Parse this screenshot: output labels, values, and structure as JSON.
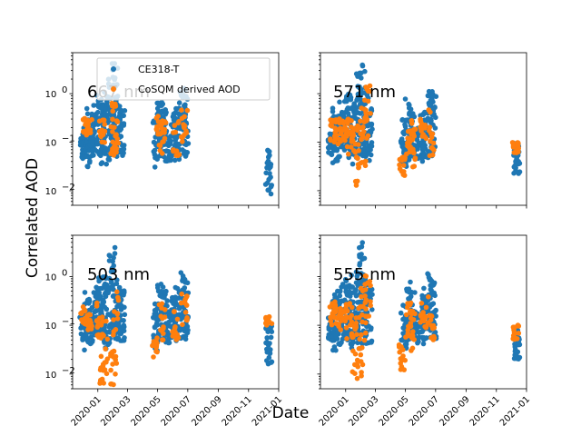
{
  "chart_data": {
    "type": "scatter",
    "xlabel": "Date",
    "ylabel": "Correlated AOD",
    "yscale": "log",
    "ylim": [
      0.005,
      7
    ],
    "xlim": [
      "2019-11-11",
      "2021-01-01"
    ],
    "x_ticks": [
      "2020-01",
      "2020-03",
      "2020-05",
      "2020-07",
      "2020-09",
      "2020-11",
      "2021-01"
    ],
    "y_ticks": [
      "10^-2",
      "10^-1",
      "10^0"
    ],
    "legend": {
      "position": "top-left of first panel",
      "entries": [
        "CE318-T",
        "CoSQM derived AOD"
      ]
    },
    "colors": {
      "CE318-T": "#1f77b4",
      "CoSQM derived AOD": "#ff7f0e"
    },
    "panels": [
      {
        "label": "667 nm",
        "series": [
          {
            "name": "CE318-T",
            "clusters": [
              {
                "date": "2019-12-02",
                "lo": 0.04,
                "hi": 0.15
              },
              {
                "date": "2019-12-10",
                "lo": 0.03,
                "hi": 0.5
              },
              {
                "date": "2019-12-18",
                "lo": 0.04,
                "hi": 0.35
              },
              {
                "date": "2019-12-26",
                "lo": 0.05,
                "hi": 0.7
              },
              {
                "date": "2020-01-05",
                "lo": 0.05,
                "hi": 1.0
              },
              {
                "date": "2020-01-12",
                "lo": 0.03,
                "hi": 1.2
              },
              {
                "date": "2020-01-20",
                "lo": 0.04,
                "hi": 0.9
              },
              {
                "date": "2020-01-28",
                "lo": 0.05,
                "hi": 3.0
              },
              {
                "date": "2020-02-04",
                "lo": 0.04,
                "hi": 5.0
              },
              {
                "date": "2020-02-10",
                "lo": 0.05,
                "hi": 1.0
              },
              {
                "date": "2020-02-18",
                "lo": 0.04,
                "hi": 0.6
              },
              {
                "date": "2020-04-28",
                "lo": 0.03,
                "hi": 0.3
              },
              {
                "date": "2020-05-06",
                "lo": 0.04,
                "hi": 0.8
              },
              {
                "date": "2020-05-14",
                "lo": 0.05,
                "hi": 0.5
              },
              {
                "date": "2020-05-22",
                "lo": 0.04,
                "hi": 0.2
              },
              {
                "date": "2020-06-04",
                "lo": 0.05,
                "hi": 0.4
              },
              {
                "date": "2020-06-10",
                "lo": 0.04,
                "hi": 0.6
              },
              {
                "date": "2020-06-20",
                "lo": 0.05,
                "hi": 1.3
              },
              {
                "date": "2020-06-26",
                "lo": 0.05,
                "hi": 1.0
              },
              {
                "date": "2020-12-12",
                "lo": 0.008,
                "hi": 0.08
              }
            ]
          },
          {
            "name": "CoSQM derived AOD",
            "clusters": [
              {
                "date": "2019-12-08",
                "lo": 0.15,
                "hi": 0.4
              },
              {
                "date": "2019-12-14",
                "lo": 0.12,
                "hi": 0.3
              },
              {
                "date": "2020-01-10",
                "lo": 0.08,
                "hi": 0.3
              },
              {
                "date": "2020-02-02",
                "lo": 0.05,
                "hi": 0.7
              },
              {
                "date": "2020-02-06",
                "lo": 0.06,
                "hi": 0.3
              },
              {
                "date": "2020-05-05",
                "lo": 0.05,
                "hi": 0.4
              },
              {
                "date": "2020-05-12",
                "lo": 0.08,
                "hi": 0.3
              },
              {
                "date": "2020-06-08",
                "lo": 0.05,
                "hi": 0.3
              },
              {
                "date": "2020-06-24",
                "lo": 0.1,
                "hi": 0.6
              }
            ]
          }
        ]
      },
      {
        "label": "571 nm",
        "series": [
          {
            "name": "CE318-T",
            "clusters": [
              {
                "date": "2019-12-02",
                "lo": 0.05,
                "hi": 0.15
              },
              {
                "date": "2019-12-10",
                "lo": 0.03,
                "hi": 0.5
              },
              {
                "date": "2019-12-18",
                "lo": 0.04,
                "hi": 0.35
              },
              {
                "date": "2019-12-26",
                "lo": 0.05,
                "hi": 0.7
              },
              {
                "date": "2020-01-05",
                "lo": 0.05,
                "hi": 1.0
              },
              {
                "date": "2020-01-12",
                "lo": 0.03,
                "hi": 1.2
              },
              {
                "date": "2020-01-20",
                "lo": 0.04,
                "hi": 0.9
              },
              {
                "date": "2020-01-28",
                "lo": 0.05,
                "hi": 3.0
              },
              {
                "date": "2020-02-04",
                "lo": 0.04,
                "hi": 5.0
              },
              {
                "date": "2020-02-10",
                "lo": 0.05,
                "hi": 1.0
              },
              {
                "date": "2020-02-18",
                "lo": 0.04,
                "hi": 0.6
              },
              {
                "date": "2020-04-28",
                "lo": 0.03,
                "hi": 0.3
              },
              {
                "date": "2020-05-06",
                "lo": 0.04,
                "hi": 0.8
              },
              {
                "date": "2020-05-14",
                "lo": 0.05,
                "hi": 0.5
              },
              {
                "date": "2020-05-22",
                "lo": 0.04,
                "hi": 0.2
              },
              {
                "date": "2020-06-04",
                "lo": 0.05,
                "hi": 0.4
              },
              {
                "date": "2020-06-10",
                "lo": 0.04,
                "hi": 0.6
              },
              {
                "date": "2020-06-20",
                "lo": 0.05,
                "hi": 1.3
              },
              {
                "date": "2020-06-26",
                "lo": 0.05,
                "hi": 1.0
              },
              {
                "date": "2020-12-12",
                "lo": 0.02,
                "hi": 0.1
              }
            ]
          },
          {
            "name": "CoSQM derived AOD",
            "clusters": [
              {
                "date": "2019-12-06",
                "lo": 0.1,
                "hi": 0.3
              },
              {
                "date": "2019-12-16",
                "lo": 0.08,
                "hi": 0.4
              },
              {
                "date": "2019-12-28",
                "lo": 0.1,
                "hi": 0.3
              },
              {
                "date": "2020-01-08",
                "lo": 0.05,
                "hi": 0.3
              },
              {
                "date": "2020-01-18",
                "lo": 0.012,
                "hi": 0.2
              },
              {
                "date": "2020-01-30",
                "lo": 0.01,
                "hi": 0.3
              },
              {
                "date": "2020-02-06",
                "lo": 0.03,
                "hi": 0.6
              },
              {
                "date": "2020-02-14",
                "lo": 0.1,
                "hi": 2.0
              },
              {
                "date": "2020-04-24",
                "lo": 0.02,
                "hi": 0.05
              },
              {
                "date": "2020-05-08",
                "lo": 0.05,
                "hi": 0.3
              },
              {
                "date": "2020-05-16",
                "lo": 0.03,
                "hi": 0.2
              },
              {
                "date": "2020-06-06",
                "lo": 0.08,
                "hi": 0.3
              },
              {
                "date": "2020-06-22",
                "lo": 0.05,
                "hi": 0.5
              },
              {
                "date": "2020-12-10",
                "lo": 0.06,
                "hi": 0.1
              }
            ]
          }
        ]
      },
      {
        "label": "503 nm",
        "series": [
          {
            "name": "CE318-T",
            "clusters": [
              {
                "date": "2019-12-02",
                "lo": 0.05,
                "hi": 0.15
              },
              {
                "date": "2019-12-10",
                "lo": 0.03,
                "hi": 0.5
              },
              {
                "date": "2019-12-18",
                "lo": 0.04,
                "hi": 0.35
              },
              {
                "date": "2019-12-26",
                "lo": 0.05,
                "hi": 0.7
              },
              {
                "date": "2020-01-05",
                "lo": 0.05,
                "hi": 1.0
              },
              {
                "date": "2020-01-12",
                "lo": 0.03,
                "hi": 1.2
              },
              {
                "date": "2020-01-20",
                "lo": 0.04,
                "hi": 0.9
              },
              {
                "date": "2020-01-28",
                "lo": 0.05,
                "hi": 3.0
              },
              {
                "date": "2020-02-04",
                "lo": 0.04,
                "hi": 5.0
              },
              {
                "date": "2020-02-10",
                "lo": 0.05,
                "hi": 1.0
              },
              {
                "date": "2020-02-18",
                "lo": 0.04,
                "hi": 0.6
              },
              {
                "date": "2020-04-28",
                "lo": 0.03,
                "hi": 0.3
              },
              {
                "date": "2020-05-06",
                "lo": 0.04,
                "hi": 0.8
              },
              {
                "date": "2020-05-14",
                "lo": 0.05,
                "hi": 0.5
              },
              {
                "date": "2020-05-22",
                "lo": 0.04,
                "hi": 0.2
              },
              {
                "date": "2020-06-04",
                "lo": 0.05,
                "hi": 0.4
              },
              {
                "date": "2020-06-10",
                "lo": 0.04,
                "hi": 0.6
              },
              {
                "date": "2020-06-20",
                "lo": 0.05,
                "hi": 1.3
              },
              {
                "date": "2020-06-26",
                "lo": 0.05,
                "hi": 1.0
              },
              {
                "date": "2020-12-12",
                "lo": 0.015,
                "hi": 0.1
              }
            ]
          },
          {
            "name": "CoSQM derived AOD",
            "clusters": [
              {
                "date": "2019-12-04",
                "lo": 0.1,
                "hi": 0.25
              },
              {
                "date": "2019-12-14",
                "lo": 0.08,
                "hi": 0.2
              },
              {
                "date": "2020-01-04",
                "lo": 0.05,
                "hi": 0.3
              },
              {
                "date": "2020-01-10",
                "lo": 0.006,
                "hi": 0.02
              },
              {
                "date": "2020-01-14",
                "lo": 0.01,
                "hi": 0.15
              },
              {
                "date": "2020-02-02",
                "lo": 0.006,
                "hi": 0.03
              },
              {
                "date": "2020-02-06",
                "lo": 0.02,
                "hi": 0.5
              },
              {
                "date": "2020-04-26",
                "lo": 0.02,
                "hi": 0.06
              },
              {
                "date": "2020-05-10",
                "lo": 0.05,
                "hi": 0.3
              },
              {
                "date": "2020-06-06",
                "lo": 0.05,
                "hi": 0.2
              },
              {
                "date": "2020-06-24",
                "lo": 0.1,
                "hi": 0.5
              },
              {
                "date": "2020-12-12",
                "lo": 0.1,
                "hi": 0.15
              }
            ]
          }
        ]
      },
      {
        "label": "555 nm",
        "series": [
          {
            "name": "CE318-T",
            "clusters": [
              {
                "date": "2019-12-02",
                "lo": 0.05,
                "hi": 0.15
              },
              {
                "date": "2019-12-10",
                "lo": 0.03,
                "hi": 0.5
              },
              {
                "date": "2019-12-18",
                "lo": 0.04,
                "hi": 0.35
              },
              {
                "date": "2019-12-26",
                "lo": 0.05,
                "hi": 0.7
              },
              {
                "date": "2020-01-05",
                "lo": 0.05,
                "hi": 1.0
              },
              {
                "date": "2020-01-12",
                "lo": 0.03,
                "hi": 1.2
              },
              {
                "date": "2020-01-20",
                "lo": 0.04,
                "hi": 0.9
              },
              {
                "date": "2020-01-28",
                "lo": 0.05,
                "hi": 3.0
              },
              {
                "date": "2020-02-04",
                "lo": 0.04,
                "hi": 5.0
              },
              {
                "date": "2020-02-10",
                "lo": 0.05,
                "hi": 1.0
              },
              {
                "date": "2020-02-18",
                "lo": 0.04,
                "hi": 0.6
              },
              {
                "date": "2020-04-28",
                "lo": 0.03,
                "hi": 0.3
              },
              {
                "date": "2020-05-06",
                "lo": 0.04,
                "hi": 0.8
              },
              {
                "date": "2020-05-14",
                "lo": 0.05,
                "hi": 0.5
              },
              {
                "date": "2020-05-22",
                "lo": 0.04,
                "hi": 0.2
              },
              {
                "date": "2020-06-04",
                "lo": 0.05,
                "hi": 0.4
              },
              {
                "date": "2020-06-10",
                "lo": 0.04,
                "hi": 0.6
              },
              {
                "date": "2020-06-20",
                "lo": 0.05,
                "hi": 1.3
              },
              {
                "date": "2020-06-26",
                "lo": 0.05,
                "hi": 1.0
              },
              {
                "date": "2020-12-12",
                "lo": 0.02,
                "hi": 0.08
              }
            ]
          },
          {
            "name": "CoSQM derived AOD",
            "clusters": [
              {
                "date": "2019-12-06",
                "lo": 0.1,
                "hi": 0.3
              },
              {
                "date": "2019-12-16",
                "lo": 0.08,
                "hi": 0.35
              },
              {
                "date": "2019-12-28",
                "lo": 0.1,
                "hi": 0.3
              },
              {
                "date": "2020-01-08",
                "lo": 0.05,
                "hi": 0.3
              },
              {
                "date": "2020-01-18",
                "lo": 0.01,
                "hi": 0.15
              },
              {
                "date": "2020-01-30",
                "lo": 0.008,
                "hi": 0.3
              },
              {
                "date": "2020-02-06",
                "lo": 0.03,
                "hi": 0.6
              },
              {
                "date": "2020-02-14",
                "lo": 0.1,
                "hi": 1.5
              },
              {
                "date": "2020-04-24",
                "lo": 0.008,
                "hi": 0.04
              },
              {
                "date": "2020-05-08",
                "lo": 0.05,
                "hi": 0.3
              },
              {
                "date": "2020-05-16",
                "lo": 0.03,
                "hi": 0.2
              },
              {
                "date": "2020-06-06",
                "lo": 0.08,
                "hi": 0.3
              },
              {
                "date": "2020-06-22",
                "lo": 0.05,
                "hi": 0.4
              },
              {
                "date": "2020-12-10",
                "lo": 0.05,
                "hi": 0.12
              }
            ]
          }
        ]
      }
    ]
  }
}
